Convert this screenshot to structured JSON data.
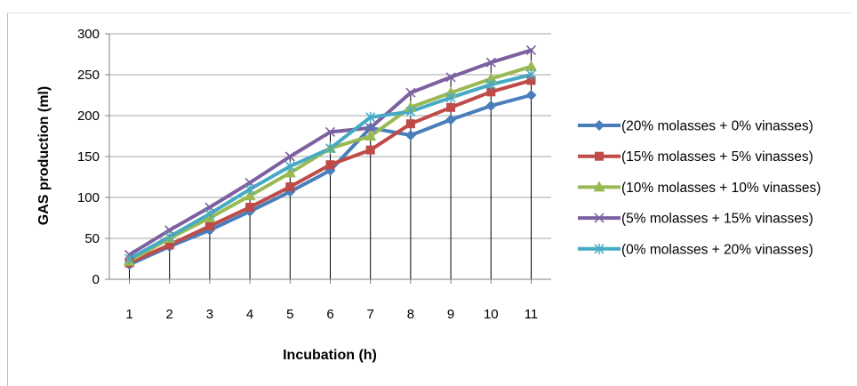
{
  "chart_data": {
    "type": "line",
    "title": "",
    "xlabel": "Incubation (h)",
    "ylabel": "GAS production  (ml)",
    "x": [
      1,
      2,
      3,
      4,
      5,
      6,
      7,
      8,
      9,
      10,
      11
    ],
    "ylim": [
      0,
      300
    ],
    "yticks": [
      0,
      50,
      100,
      150,
      200,
      250,
      300
    ],
    "grid": "horizontal",
    "drop_lines": true,
    "legend_position": "right",
    "series": [
      {
        "name": "(20% molasses + 0% vinasses)",
        "color": "#4a7ebb",
        "marker": "diamond",
        "values": [
          18,
          40,
          60,
          83,
          107,
          133,
          185,
          176,
          195,
          212,
          225
        ]
      },
      {
        "name": "(15% molasses + 5% vinasses)",
        "color": "#be4b48",
        "marker": "square",
        "values": [
          20,
          42,
          65,
          88,
          113,
          140,
          158,
          190,
          210,
          229,
          243
        ]
      },
      {
        "name": "(10% molasses + 10% vinasses)",
        "color": "#98b954",
        "marker": "triangle",
        "values": [
          22,
          50,
          75,
          102,
          130,
          160,
          175,
          210,
          228,
          245,
          260
        ]
      },
      {
        "name": "(5% molasses + 15% vinasses)",
        "color": "#7d60a0",
        "marker": "x",
        "values": [
          30,
          60,
          88,
          118,
          150,
          180,
          185,
          228,
          247,
          265,
          280
        ]
      },
      {
        "name": "(0% molasses + 20% vinasses)",
        "color": "#46aac5",
        "marker": "star",
        "values": [
          25,
          52,
          80,
          110,
          138,
          160,
          198,
          205,
          222,
          238,
          250
        ]
      }
    ]
  }
}
